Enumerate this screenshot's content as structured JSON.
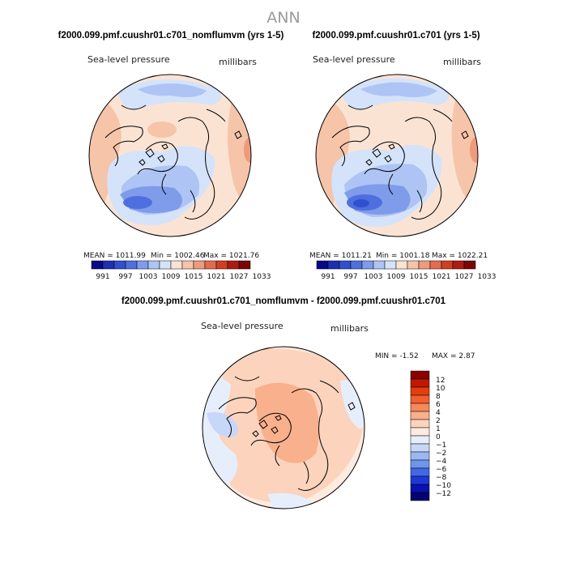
{
  "chart_data": {
    "type": "contour-map",
    "title": "ANN",
    "panels": [
      {
        "name": "case",
        "title": "f2000.099.pmf.cuushr01.c701_nomflumvm (yrs 1-5)",
        "variable": "Sea-level pressure",
        "units": "millibars",
        "stats_labels": [
          "MEAN",
          "Min",
          "Max"
        ],
        "stats": [
          "1011.99",
          "1002.46",
          "1021.76"
        ],
        "levels": [
          "991",
          "997",
          "1003",
          "1009",
          "1015",
          "1021",
          "1027",
          "1033"
        ],
        "colors": [
          "#08088a",
          "#1d2fb2",
          "#3050cf",
          "#4f6fe0",
          "#7f9ceb",
          "#aec4f4",
          "#d4e3fa",
          "#fbe3d4",
          "#f6c4a8",
          "#ee9a7c",
          "#e46b4e",
          "#d23e24",
          "#b01a10",
          "#7c0606"
        ]
      },
      {
        "name": "control",
        "title": "f2000.099.pmf.cuushr01.c701 (yrs 1-5)",
        "variable": "Sea-level pressure",
        "units": "millibars",
        "stats_labels": [
          "MEAN",
          "Min",
          "Max"
        ],
        "stats": [
          "1011.21",
          "1001.18",
          "1022.21"
        ],
        "levels": [
          "991",
          "997",
          "1003",
          "1009",
          "1015",
          "1021",
          "1027",
          "1033"
        ],
        "colors": [
          "#08088a",
          "#1d2fb2",
          "#3050cf",
          "#4f6fe0",
          "#7f9ceb",
          "#aec4f4",
          "#d4e3fa",
          "#fbe3d4",
          "#f6c4a8",
          "#ee9a7c",
          "#e46b4e",
          "#d23e24",
          "#b01a10",
          "#7c0606"
        ]
      },
      {
        "name": "difference",
        "title": "f2000.099.pmf.cuushr01.c701_nomflumvm - f2000.099.pmf.cuushr01.c701",
        "variable": "Sea-level pressure",
        "units": "millibars",
        "stats_labels": [
          "MIN =",
          "MAX ="
        ],
        "stats": [
          "-1.52",
          "2.87"
        ],
        "levels": [
          "12",
          "10",
          "8",
          "6",
          "4",
          "2",
          "1",
          "0",
          "−1",
          "−2",
          "−4",
          "−6",
          "−8",
          "−10",
          "−12"
        ],
        "colors": [
          "#8a0000",
          "#c21800",
          "#e43d10",
          "#f2602e",
          "#f6895a",
          "#f9b08c",
          "#fcd3bd",
          "#fdebe0",
          "#e6eefc",
          "#c6d7f8",
          "#9cb8f2",
          "#6f95ec",
          "#4266e6",
          "#1d38d6",
          "#0a10b2",
          "#04046e"
        ]
      }
    ]
  }
}
